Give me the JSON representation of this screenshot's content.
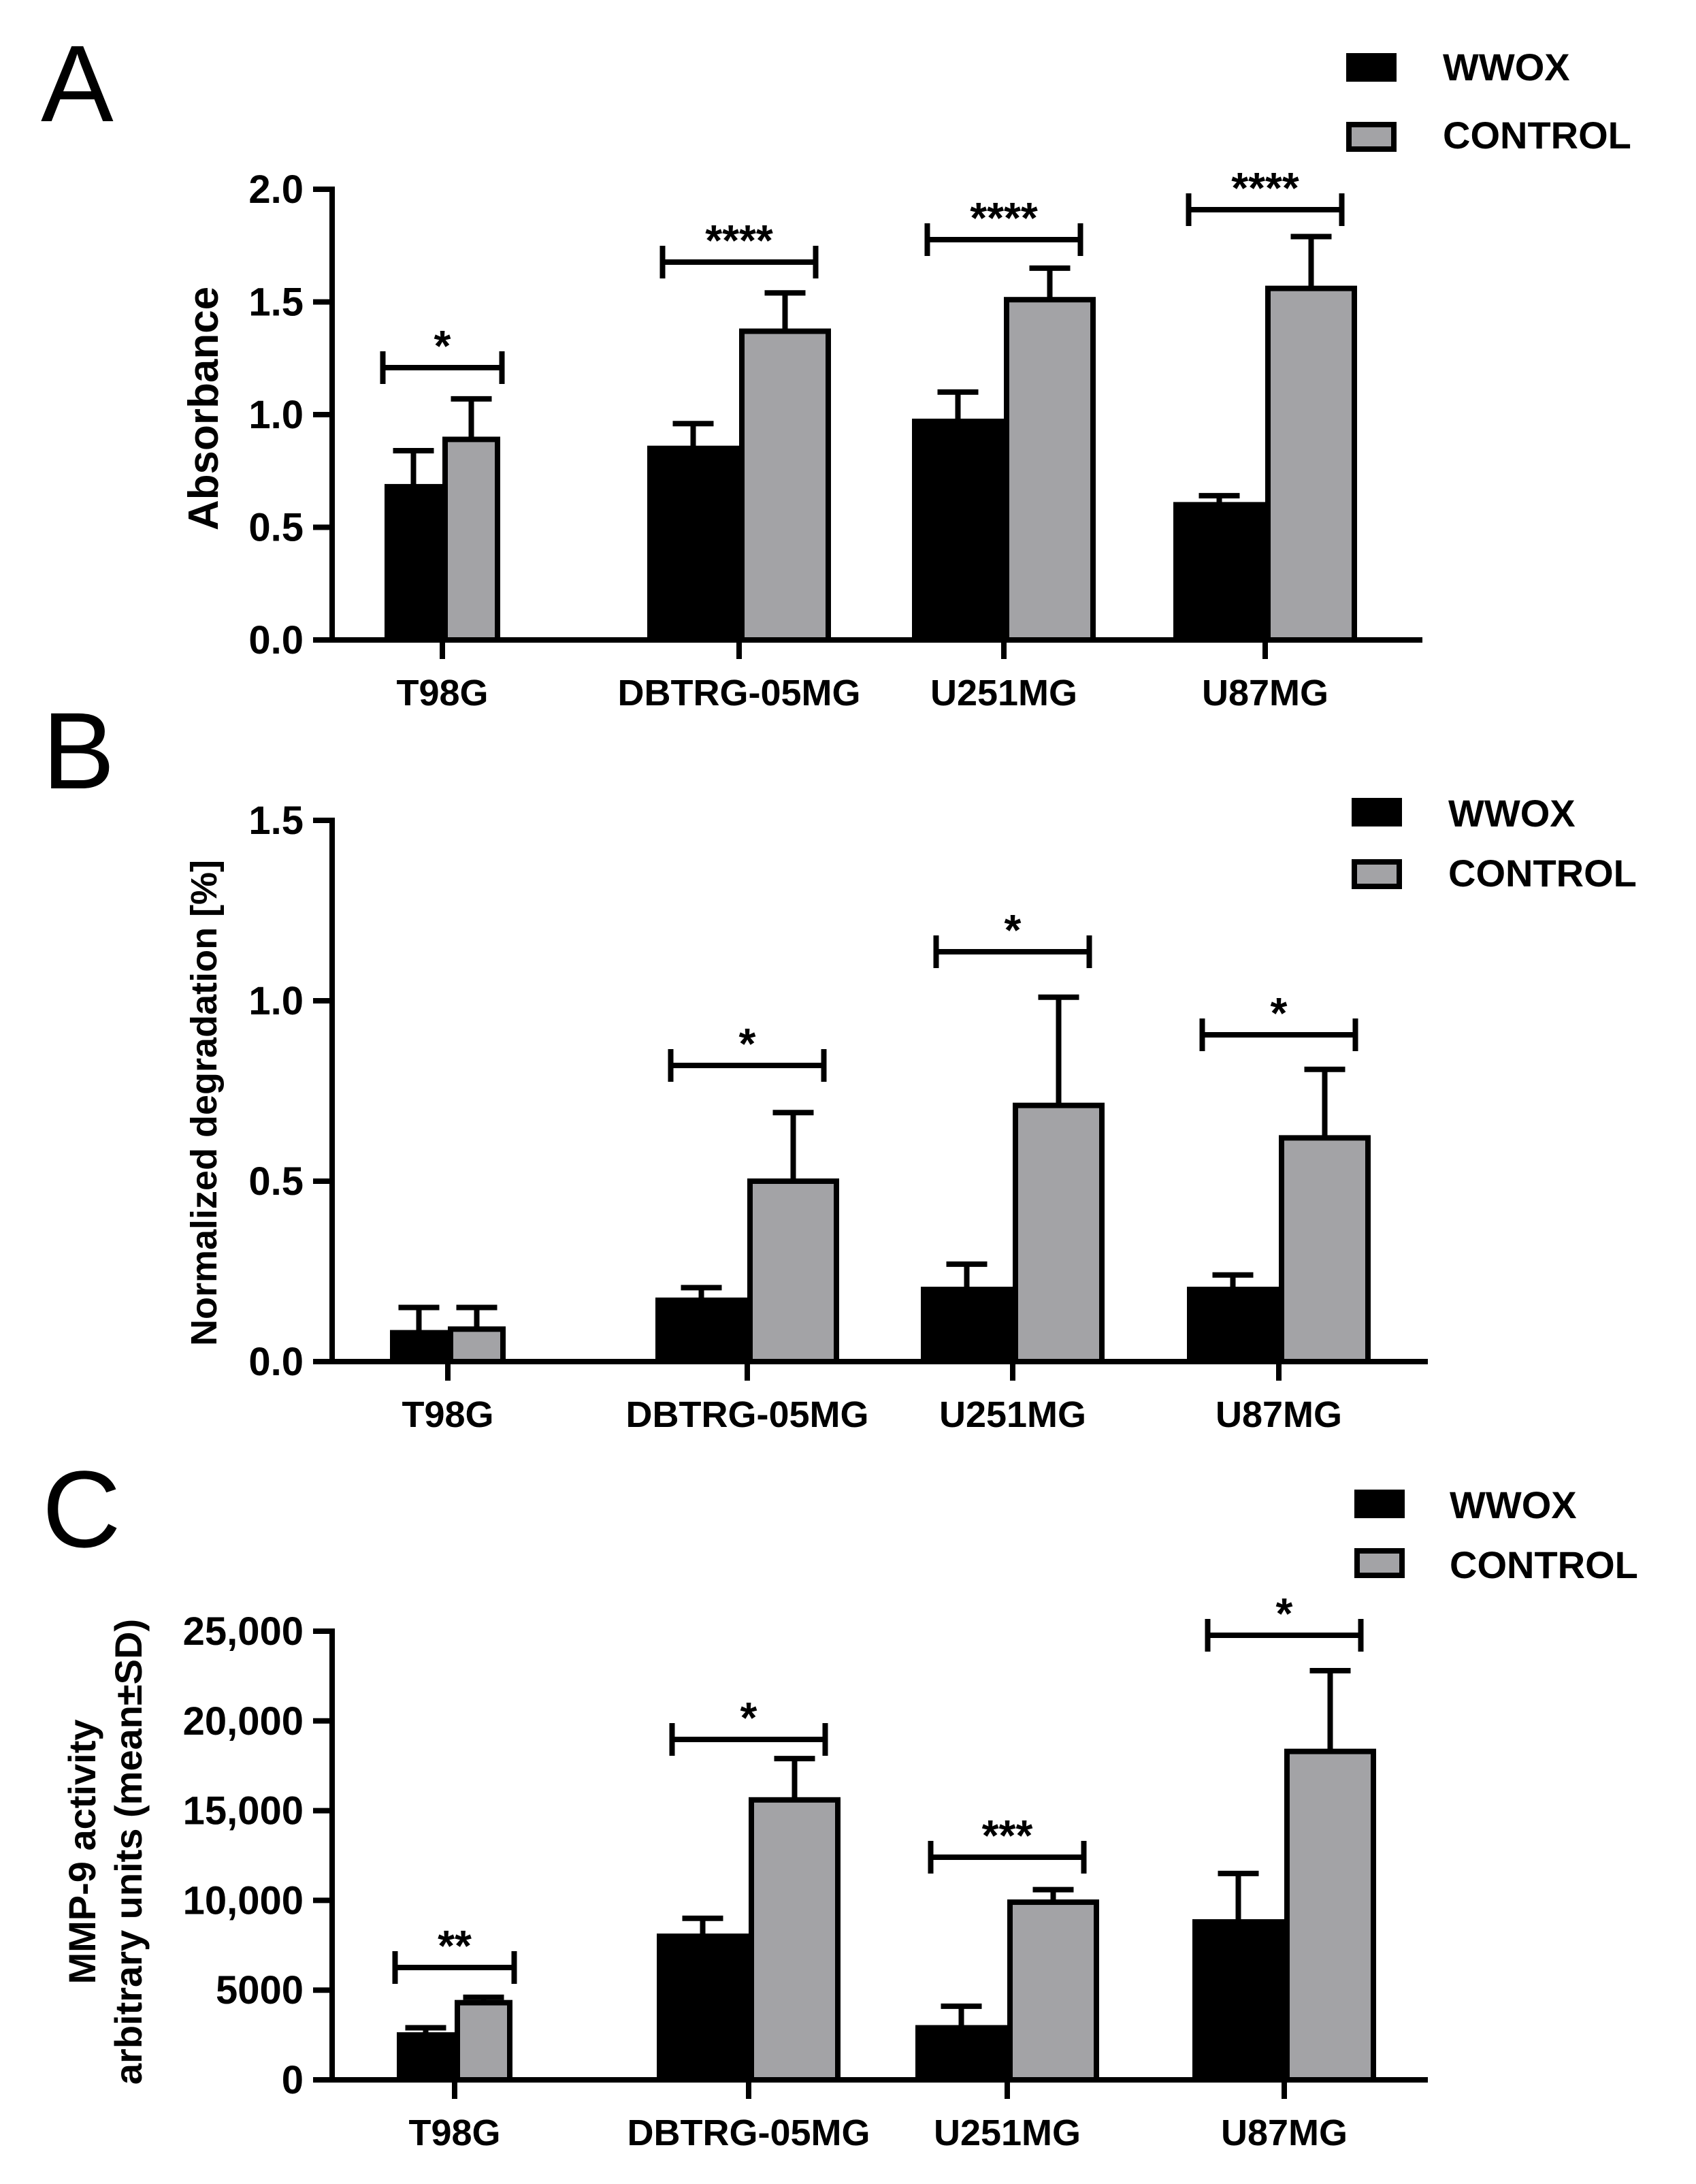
{
  "colors": {
    "wwox": "#000000",
    "control": "#a3a3a6",
    "axis": "#000000"
  },
  "chart_data": [
    {
      "type": "bar",
      "panel": "A",
      "ylabel": "Absorbance",
      "xlabel": "",
      "ylim": [
        0,
        2.0
      ],
      "yticks": [
        0,
        0.5,
        1.0,
        1.5,
        2.0
      ],
      "ytick_labels": [
        "0.0",
        "0.5",
        "1.0",
        "1.5",
        "2.0"
      ],
      "categories": [
        "T98G",
        "DBTRG-05MG",
        "U251MG",
        "U87MG"
      ],
      "series": [
        {
          "name": "WWOX",
          "values": [
            0.68,
            0.85,
            0.97,
            0.6
          ],
          "errors": [
            0.16,
            0.11,
            0.13,
            0.04
          ]
        },
        {
          "name": "CONTROL",
          "values": [
            0.89,
            1.37,
            1.51,
            1.56
          ],
          "errors": [
            0.18,
            0.17,
            0.14,
            0.23
          ]
        }
      ],
      "significance": [
        "*",
        "****",
        "****",
        "****"
      ],
      "legend": [
        "WWOX",
        "CONTROL"
      ],
      "legend_position": "top-right",
      "grid": false
    },
    {
      "type": "bar",
      "panel": "B",
      "ylabel": "Normalized degradation [%]",
      "xlabel": "",
      "ylim": [
        0,
        1.5
      ],
      "yticks": [
        0,
        0.5,
        1.0,
        1.5
      ],
      "ytick_labels": [
        "0.0",
        "0.5",
        "1.0",
        "1.5"
      ],
      "categories": [
        "T98G",
        "DBTRG-05MG",
        "U251MG",
        "U87MG"
      ],
      "series": [
        {
          "name": "WWOX",
          "values": [
            0.08,
            0.17,
            0.2,
            0.2
          ],
          "errors": [
            0.07,
            0.035,
            0.07,
            0.04
          ]
        },
        {
          "name": "CONTROL",
          "values": [
            0.09,
            0.5,
            0.71,
            0.62
          ],
          "errors": [
            0.06,
            0.19,
            0.3,
            0.19
          ]
        }
      ],
      "significance": [
        "",
        "*",
        "*",
        "*"
      ],
      "legend": [
        "WWOX",
        "CONTROL"
      ],
      "legend_position": "top-right",
      "grid": false
    },
    {
      "type": "bar",
      "panel": "C",
      "ylabel": "MMP-9 activity",
      "ylabel2": "arbitrary units (mean±SD)",
      "xlabel": "",
      "ylim": [
        0,
        25000
      ],
      "yticks": [
        0,
        5000,
        10000,
        15000,
        20000,
        25000
      ],
      "ytick_labels": [
        "0",
        "5000",
        "10,000",
        "15,000",
        "20,000",
        "25,000"
      ],
      "categories": [
        "T98G",
        "DBTRG-05MG",
        "U251MG",
        "U87MG"
      ],
      "series": [
        {
          "name": "WWOX",
          "values": [
            2500,
            8000,
            2900,
            8800
          ],
          "errors": [
            400,
            1000,
            1200,
            2700
          ]
        },
        {
          "name": "CONTROL",
          "values": [
            4300,
            15600,
            9900,
            18300
          ],
          "errors": [
            300,
            2300,
            700,
            4500
          ]
        }
      ],
      "significance": [
        "**",
        "*",
        "***",
        "*"
      ],
      "legend": [
        "WWOX",
        "CONTROL"
      ],
      "legend_position": "top-right",
      "grid": false
    }
  ]
}
